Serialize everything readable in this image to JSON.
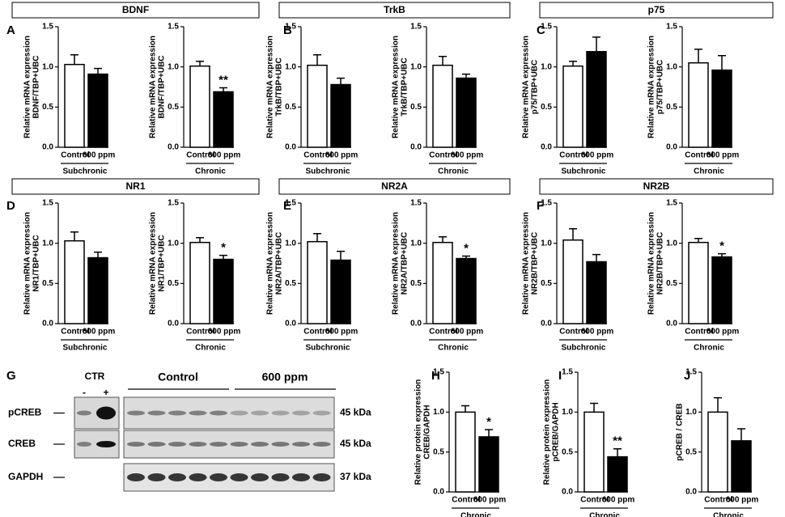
{
  "headers": [
    "BDNF",
    "TrkB",
    "p75",
    "NR1",
    "NR2A",
    "NR2B"
  ],
  "panel_letters": [
    "A",
    "B",
    "C",
    "D",
    "E",
    "F",
    "G",
    "H",
    "I",
    "J"
  ],
  "blot": {
    "ctr_label": "CTR",
    "ctr_lanes": [
      "-",
      "+"
    ],
    "groups": [
      "Control",
      "600 ppm"
    ],
    "rows": [
      {
        "name": "pCREB",
        "size": "45 kDa"
      },
      {
        "name": "CREB",
        "size": "45 kDa"
      },
      {
        "name": "GAPDH",
        "size": "37 kDa"
      }
    ]
  },
  "chart_data": [
    {
      "type": "bar",
      "ylabel": [
        "Relative mRNA expression",
        "BDNF/TBP+UBC"
      ],
      "categories": [
        "Control",
        "600 ppm"
      ],
      "group": "Subchronic",
      "values": [
        1.03,
        0.91
      ],
      "errors": [
        0.12,
        0.07
      ],
      "colors": [
        "#ffffff",
        "#000000"
      ],
      "ylim": [
        0,
        1.5
      ],
      "yticks": [
        {
          "value": 0,
          "label": "0.0"
        },
        {
          "value": 0.5,
          "label": "0.5"
        },
        {
          "value": 1,
          "label": "1.0"
        },
        {
          "value": 1.5,
          "label": "1.5"
        }
      ]
    },
    {
      "type": "bar",
      "ylabel": [
        "Relative mRNA expression",
        "BDNF/TBP+UBC"
      ],
      "categories": [
        "Control",
        "600 ppm"
      ],
      "group": "Chronic",
      "values": [
        1.01,
        0.69
      ],
      "errors": [
        0.06,
        0.05
      ],
      "annotation": "**",
      "colors": [
        "#ffffff",
        "#000000"
      ],
      "ylim": [
        0,
        1.5
      ],
      "yticks": [
        {
          "value": 0,
          "label": "0.0"
        },
        {
          "value": 0.5,
          "label": "0.5"
        },
        {
          "value": 1,
          "label": "1.0"
        },
        {
          "value": 1.5,
          "label": "1.5"
        }
      ]
    },
    {
      "type": "bar",
      "ylabel": [
        "Relative mRNA expression",
        "TrkB/TBP+UBC"
      ],
      "categories": [
        "Control",
        "600 ppm"
      ],
      "group": "Subchronic",
      "values": [
        1.02,
        0.78
      ],
      "errors": [
        0.13,
        0.08
      ],
      "colors": [
        "#ffffff",
        "#000000"
      ],
      "ylim": [
        0,
        1.5
      ],
      "yticks": [
        {
          "value": 0,
          "label": "0.0"
        },
        {
          "value": 0.5,
          "label": "0.5"
        },
        {
          "value": 1,
          "label": "1.0"
        },
        {
          "value": 1.5,
          "label": "1.5"
        }
      ]
    },
    {
      "type": "bar",
      "ylabel": [
        "Relative mRNA expression",
        "TrkB/TBP+UBC"
      ],
      "categories": [
        "Control",
        "600 ppm"
      ],
      "group": "Chronic",
      "values": [
        1.02,
        0.86
      ],
      "errors": [
        0.11,
        0.05
      ],
      "colors": [
        "#ffffff",
        "#000000"
      ],
      "ylim": [
        0,
        1.5
      ],
      "yticks": [
        {
          "value": 0,
          "label": "0.0"
        },
        {
          "value": 0.5,
          "label": "0.5"
        },
        {
          "value": 1,
          "label": "1.0"
        },
        {
          "value": 1.5,
          "label": "1.5"
        }
      ]
    },
    {
      "type": "bar",
      "ylabel": [
        "Relative mRNA expression",
        "p75/TBP+UBC"
      ],
      "categories": [
        "Control",
        "600 ppm"
      ],
      "group": "Subchronic",
      "values": [
        1.01,
        1.19
      ],
      "errors": [
        0.06,
        0.18
      ],
      "colors": [
        "#ffffff",
        "#000000"
      ],
      "ylim": [
        0,
        1.5
      ],
      "yticks": [
        {
          "value": 0,
          "label": "0.0"
        },
        {
          "value": 0.5,
          "label": "0.5"
        },
        {
          "value": 1,
          "label": "1.0"
        },
        {
          "value": 1.5,
          "label": "1.5"
        }
      ]
    },
    {
      "type": "bar",
      "ylabel": [
        "Relative mRNA expression",
        "p75/TBP+UBC"
      ],
      "categories": [
        "Control",
        "600 ppm"
      ],
      "group": "Chronic",
      "values": [
        1.05,
        0.96
      ],
      "errors": [
        0.17,
        0.18
      ],
      "colors": [
        "#ffffff",
        "#000000"
      ],
      "ylim": [
        0,
        1.5
      ],
      "yticks": [
        {
          "value": 0,
          "label": "0.0"
        },
        {
          "value": 0.5,
          "label": "0.5"
        },
        {
          "value": 1,
          "label": "1.0"
        },
        {
          "value": 1.5,
          "label": "1.5"
        }
      ]
    },
    {
      "type": "bar",
      "ylabel": [
        "Relative mRNA expression",
        "NR1/TBP+UBC"
      ],
      "categories": [
        "Control",
        "600 ppm"
      ],
      "group": "Subchronic",
      "values": [
        1.03,
        0.82
      ],
      "errors": [
        0.11,
        0.07
      ],
      "colors": [
        "#ffffff",
        "#000000"
      ],
      "ylim": [
        0,
        1.5
      ],
      "yticks": [
        {
          "value": 0,
          "label": "0.0"
        },
        {
          "value": 0.5,
          "label": "0.5"
        },
        {
          "value": 1,
          "label": "1.0"
        },
        {
          "value": 1.5,
          "label": "1.5"
        }
      ]
    },
    {
      "type": "bar",
      "ylabel": [
        "Relative mRNA expression",
        "NR1/TBP+UBC"
      ],
      "categories": [
        "Control",
        "600 ppm"
      ],
      "group": "Chronic",
      "values": [
        1.01,
        0.8
      ],
      "errors": [
        0.06,
        0.05
      ],
      "annotation": "*",
      "colors": [
        "#ffffff",
        "#000000"
      ],
      "ylim": [
        0,
        1.5
      ],
      "yticks": [
        {
          "value": 0,
          "label": "0.0"
        },
        {
          "value": 0.5,
          "label": "0.5"
        },
        {
          "value": 1,
          "label": "1.0"
        },
        {
          "value": 1.5,
          "label": "1.5"
        }
      ]
    },
    {
      "type": "bar",
      "ylabel": [
        "Relative mRNA expression",
        "NR2A/TBP+UBC"
      ],
      "categories": [
        "Control",
        "600 ppm"
      ],
      "group": "Subchronic",
      "values": [
        1.02,
        0.79
      ],
      "errors": [
        0.1,
        0.11
      ],
      "colors": [
        "#ffffff",
        "#000000"
      ],
      "ylim": [
        0,
        1.5
      ],
      "yticks": [
        {
          "value": 0,
          "label": "0.0"
        },
        {
          "value": 0.5,
          "label": "0.5"
        },
        {
          "value": 1,
          "label": "1.0"
        },
        {
          "value": 1.5,
          "label": "1.5"
        }
      ]
    },
    {
      "type": "bar",
      "ylabel": [
        "Relative mRNA expression",
        "NR2A/TBP+UBC"
      ],
      "categories": [
        "Control",
        "600 ppm"
      ],
      "group": "Chronic",
      "values": [
        1.01,
        0.81
      ],
      "errors": [
        0.07,
        0.03
      ],
      "annotation": "*",
      "colors": [
        "#ffffff",
        "#000000"
      ],
      "ylim": [
        0,
        1.5
      ],
      "yticks": [
        {
          "value": 0,
          "label": "0.0"
        },
        {
          "value": 0.5,
          "label": "0.5"
        },
        {
          "value": 1,
          "label": "1.0"
        },
        {
          "value": 1.5,
          "label": "1.5"
        }
      ]
    },
    {
      "type": "bar",
      "ylabel": [
        "Relative mRNA expression",
        "NR2B/TBP+UBC"
      ],
      "categories": [
        "Control",
        "600 ppm"
      ],
      "group": "Subchronic",
      "values": [
        1.04,
        0.77
      ],
      "errors": [
        0.14,
        0.09
      ],
      "colors": [
        "#ffffff",
        "#000000"
      ],
      "ylim": [
        0,
        1.5
      ],
      "yticks": [
        {
          "value": 0,
          "label": "0.0"
        },
        {
          "value": 0.5,
          "label": "0.5"
        },
        {
          "value": 1,
          "label": "1.0"
        },
        {
          "value": 1.5,
          "label": "1.5"
        }
      ]
    },
    {
      "type": "bar",
      "ylabel": [
        "Relative mRNA expression",
        "NR2B/TBP+UBC"
      ],
      "categories": [
        "Control",
        "600 ppm"
      ],
      "group": "Chronic",
      "values": [
        1.01,
        0.83
      ],
      "errors": [
        0.05,
        0.04
      ],
      "annotation": "*",
      "colors": [
        "#ffffff",
        "#000000"
      ],
      "ylim": [
        0,
        1.5
      ],
      "yticks": [
        {
          "value": 0,
          "label": "0.0"
        },
        {
          "value": 0.5,
          "label": "0.5"
        },
        {
          "value": 1,
          "label": "1.0"
        },
        {
          "value": 1.5,
          "label": "1.5"
        }
      ]
    },
    {
      "type": "bar",
      "ylabel": [
        "Relative protein expression",
        "CREB/GAPDH"
      ],
      "categories": [
        "Control",
        "600 ppm"
      ],
      "group": "Chronic",
      "values": [
        1.0,
        0.69
      ],
      "errors": [
        0.08,
        0.09
      ],
      "annotation": "*",
      "colors": [
        "#ffffff",
        "#000000"
      ],
      "ylim": [
        0,
        1.5
      ],
      "yticks": [
        {
          "value": 0,
          "label": "0.0"
        },
        {
          "value": 0.5,
          "label": "0.5"
        },
        {
          "value": 1,
          "label": "1.0"
        },
        {
          "value": 1.5,
          "label": "1.5"
        }
      ]
    },
    {
      "type": "bar",
      "ylabel": [
        "Relative protein expression",
        "pCREB/GAPDH"
      ],
      "categories": [
        "Control",
        "600 ppm"
      ],
      "group": "Chronic",
      "values": [
        1.0,
        0.44
      ],
      "errors": [
        0.11,
        0.1
      ],
      "annotation": "**",
      "colors": [
        "#ffffff",
        "#000000"
      ],
      "ylim": [
        0,
        1.5
      ],
      "yticks": [
        {
          "value": 0,
          "label": "0.0"
        },
        {
          "value": 0.5,
          "label": "0.5"
        },
        {
          "value": 1,
          "label": "1.0"
        },
        {
          "value": 1.5,
          "label": "1.5"
        }
      ]
    },
    {
      "type": "bar",
      "ylabel": [
        "pCREB / CREB"
      ],
      "categories": [
        "Control",
        "600 ppm"
      ],
      "group": "Chronic",
      "values": [
        1.0,
        0.64
      ],
      "errors": [
        0.18,
        0.15
      ],
      "colors": [
        "#ffffff",
        "#000000"
      ],
      "ylim": [
        0,
        1.5
      ],
      "yticks": [
        {
          "value": 0,
          "label": "0.0"
        },
        {
          "value": 0.5,
          "label": "0.5"
        },
        {
          "value": 1,
          "label": "1.0"
        },
        {
          "value": 1.5,
          "label": "1.5"
        }
      ]
    }
  ]
}
